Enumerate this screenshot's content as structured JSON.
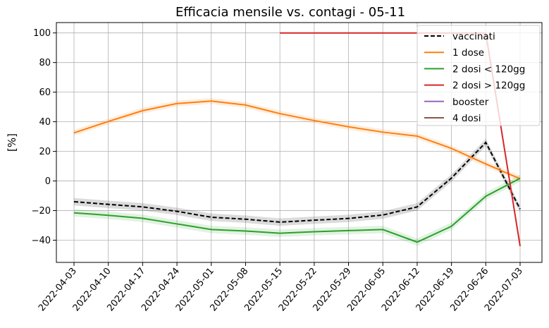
{
  "chart_data": {
    "type": "line",
    "title": "Efficacia mensile vs. contagi - 05-11",
    "xlabel": "",
    "ylabel": "[%]",
    "x": [
      "2022-04-03",
      "2022-04-10",
      "2022-04-17",
      "2022-04-24",
      "2022-05-01",
      "2022-05-08",
      "2022-05-15",
      "2022-05-22",
      "2022-05-29",
      "2022-06-05",
      "2022-06-12",
      "2022-06-19",
      "2022-06-26",
      "2022-07-03"
    ],
    "ylim": [
      -55,
      107
    ],
    "yticks": [
      -40,
      -20,
      0,
      20,
      40,
      60,
      80,
      100
    ],
    "grid": true,
    "legend_position": "top-right",
    "series": [
      {
        "name": "vaccinati",
        "color": "#000000",
        "dash": true,
        "band": 2.5,
        "values": [
          -14,
          -15.8,
          -17.5,
          -20.5,
          -24.5,
          -25.8,
          -27.8,
          -26.5,
          -25.3,
          -23,
          -17.5,
          2,
          26,
          -19
        ]
      },
      {
        "name": "1 dose",
        "color": "#ff7f0e",
        "dash": false,
        "band": 2,
        "values": [
          32.5,
          40.2,
          47.5,
          52.3,
          54,
          51.3,
          45.5,
          40.8,
          36.6,
          33,
          30.3,
          22,
          11.5,
          1.5
        ]
      },
      {
        "name": "2 dosi < 120gg",
        "color": "#2ca02c",
        "dash": false,
        "band": 2.5,
        "values": [
          -21.5,
          -23.2,
          -25.2,
          -29,
          -32.8,
          -33.8,
          -35.3,
          -34.3,
          -33.5,
          -32.8,
          -41.3,
          -30.6,
          -10.3,
          1.8
        ]
      },
      {
        "name": "2 dosi > 120gg",
        "color": "#d62728",
        "dash": false,
        "band": 0,
        "values": [
          null,
          null,
          null,
          null,
          null,
          null,
          100,
          100,
          100,
          100,
          100,
          100,
          100,
          -44
        ]
      },
      {
        "name": "booster",
        "color": "#9467bd",
        "dash": false,
        "band": 0,
        "values": [
          null,
          null,
          null,
          null,
          null,
          null,
          null,
          null,
          null,
          null,
          null,
          null,
          null,
          null
        ]
      },
      {
        "name": "4 dosi",
        "color": "#8c564b",
        "dash": false,
        "band": 0,
        "values": [
          null,
          null,
          null,
          null,
          null,
          null,
          null,
          null,
          null,
          null,
          null,
          null,
          null,
          null
        ]
      }
    ]
  }
}
